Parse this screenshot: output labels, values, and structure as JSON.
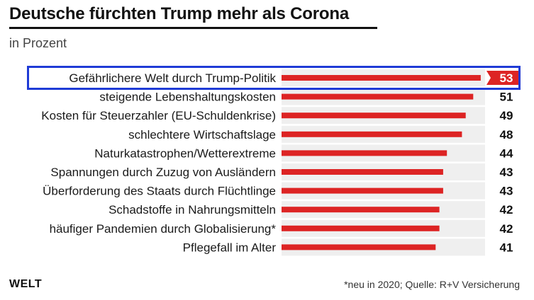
{
  "header": {
    "title": "Deutsche fürchten Trump mehr als Corona",
    "subtitle": "in Prozent"
  },
  "footer": {
    "logo": "WELT",
    "source": "*neu in 2020; Quelle: R+V Versicherung"
  },
  "colors": {
    "bar": "#dd2424",
    "track": "#efefef",
    "highlight_border": "#1f3bd6",
    "highlight_label_bg": "#dd2424"
  },
  "chart_data": {
    "type": "bar",
    "orientation": "horizontal",
    "title": "Deutsche fürchten Trump mehr als Corona",
    "subtitle": "in Prozent",
    "xlim": [
      0,
      100
    ],
    "grid": false,
    "highlighted_index": 0,
    "categories": [
      "Gefährlichere Welt durch Trump-Politik",
      "steigende Lebenshaltungskosten",
      "Kosten für Steuerzahler (EU-Schuldenkrise)",
      "schlechtere Wirtschaftslage",
      "Naturkatastrophen/Wetterextreme",
      "Spannungen durch Zuzug von Ausländern",
      "Überforderung des Staats durch Flüchtlinge",
      "Schadstoffe in Nahrungsmitteln",
      "häufiger Pandemien durch Globalisierung*",
      "Pflegefall im Alter"
    ],
    "values": [
      53,
      51,
      49,
      48,
      44,
      43,
      43,
      42,
      42,
      41
    ]
  }
}
